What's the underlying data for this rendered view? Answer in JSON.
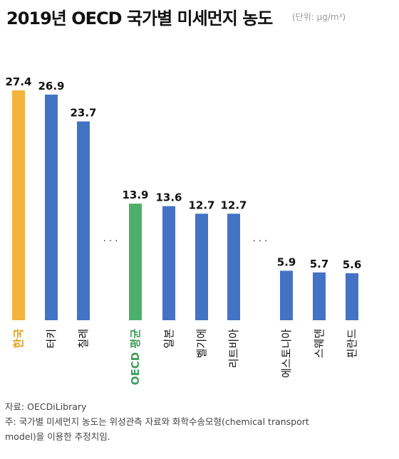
{
  "header": {
    "title": "2019년 OECD 국가별 미세먼지 농도",
    "unit": "(단위: μg/m³)"
  },
  "colors": {
    "highlight": "#F5B23E",
    "average": "#4DB06A",
    "default": "#4472C4",
    "highlight_label": "#E3A21F",
    "average_label": "#3E9E5A"
  },
  "chart_data": {
    "type": "bar",
    "title": "2019년 OECD 국가별 미세먼지 농도",
    "unit": "(단위: μg/m³)",
    "categories": [
      "한국",
      "터키",
      "칠레",
      "OECD 평균",
      "일본",
      "벨기에",
      "리트비아",
      "에스토니아",
      "스웨덴",
      "핀란드"
    ],
    "values": [
      27.4,
      26.9,
      23.7,
      13.9,
      13.6,
      12.7,
      12.7,
      5.9,
      5.7,
      5.6
    ],
    "value_labels": [
      "27.4",
      "26.9",
      "23.7",
      "13.9",
      "13.6",
      "12.7",
      "12.7",
      "5.9",
      "5.7",
      "5.6"
    ],
    "highlight": {
      "한국": "highlight",
      "OECD 평균": "average"
    },
    "ylim": [
      0,
      27.4
    ],
    "grid": false,
    "legend": "none",
    "gap_marker": "· · ·",
    "gaps_after": [
      2,
      6
    ]
  },
  "footer": {
    "source": "자료: OECDiLibrary",
    "note_line1": "주: 국가별 미세먼지 농도는 위성관측 자료와 화학수송모형(chemical transport",
    "note_line2": "model)을 이용한 추정치임."
  }
}
